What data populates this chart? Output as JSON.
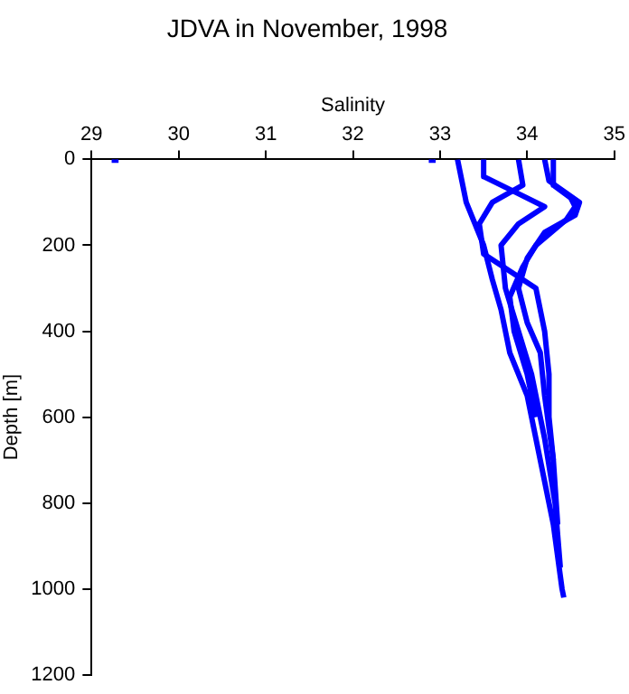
{
  "chart_data": {
    "type": "line",
    "title": "JDVA in November, 1998",
    "xlabel": "Salinity",
    "ylabel": "Depth [m]",
    "xlim": [
      29,
      35
    ],
    "xticks": [
      29,
      30,
      31,
      32,
      33,
      34,
      35
    ],
    "ylim": [
      1200,
      0
    ],
    "yticks": [
      0,
      200,
      400,
      600,
      800,
      1000,
      1200
    ],
    "grid": false,
    "legend": false,
    "marker": "none",
    "line_style": "solid",
    "series": [
      {
        "color": "#0000ff",
        "x": [
          33.2,
          33.25,
          33.3,
          33.4,
          33.5,
          33.6,
          33.7,
          33.8,
          34.0,
          34.15,
          34.3,
          34.4,
          34.42
        ],
        "values": [
          0,
          50,
          100,
          150,
          200,
          280,
          350,
          450,
          550,
          700,
          850,
          1000,
          1020
        ]
      },
      {
        "color": "#0000ff",
        "x": [
          33.5,
          33.5,
          33.9,
          34.2,
          33.9,
          33.7,
          33.75,
          33.9,
          34.05,
          34.2,
          34.32,
          34.38
        ],
        "values": [
          0,
          40,
          80,
          110,
          150,
          200,
          300,
          400,
          500,
          650,
          800,
          950
        ]
      },
      {
        "color": "#0000ff",
        "x": [
          34.2,
          34.25,
          34.6,
          34.55,
          34.2,
          34.0,
          33.9,
          34.0,
          34.15,
          34.2,
          34.3,
          34.35
        ],
        "values": [
          0,
          50,
          100,
          130,
          170,
          230,
          300,
          380,
          450,
          550,
          700,
          850
        ]
      },
      {
        "color": "#0000ff",
        "x": [
          33.9,
          33.95,
          33.6,
          33.45,
          33.5,
          33.8,
          34.1,
          34.2,
          34.25,
          34.25,
          34.3
        ],
        "values": [
          0,
          60,
          100,
          150,
          220,
          260,
          300,
          400,
          500,
          600,
          700
        ]
      },
      {
        "color": "#0000ff",
        "x": [
          34.3,
          34.3,
          34.5,
          34.55,
          34.45,
          34.1,
          33.95,
          33.8,
          33.85,
          34.0,
          34.1
        ],
        "values": [
          0,
          60,
          90,
          110,
          140,
          200,
          250,
          320,
          400,
          500,
          600
        ]
      },
      {
        "type": "scatter",
        "marker": "square",
        "color": "#0000ff",
        "x": [
          29.27,
          32.91
        ],
        "values": [
          0,
          0
        ]
      }
    ]
  }
}
